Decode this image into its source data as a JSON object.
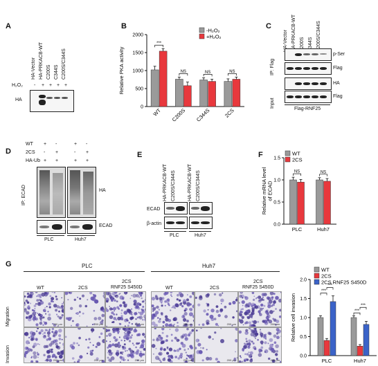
{
  "panels": {
    "a": "A",
    "b": "B",
    "c": "C",
    "d": "D",
    "e": "E",
    "f": "F",
    "g": "G"
  },
  "panelA": {
    "lanes": [
      "HA-Vector",
      "HA-PRKACB-WT",
      "C200S",
      "C344S",
      "C200S/C344S"
    ],
    "h2o2_label": "H₂O₂",
    "h2o2_marks": [
      "-",
      "+",
      "+",
      "+",
      "+"
    ],
    "blot_label": "HA"
  },
  "panelC": {
    "lanes": [
      "HA-Vector",
      "HA-PRKACB-WT",
      "C200S",
      "C344S",
      "C200S/C344S"
    ],
    "ip_label": "IP: Flag",
    "input_label": "Input",
    "bands": [
      "p-Ser",
      "Flag",
      "HA",
      "Flag"
    ],
    "bottom_label": "Flag-RNF25"
  },
  "panelD": {
    "rows": [
      {
        "label": "WT",
        "marks": [
          "+",
          "-",
          "+",
          "-"
        ]
      },
      {
        "label": "2CS",
        "marks": [
          "-",
          "+",
          "-",
          "+"
        ]
      },
      {
        "label": "HA-Ub",
        "marks": [
          "+",
          "+",
          "+",
          "+"
        ]
      }
    ],
    "ip_label": "IP: ECAD",
    "bands": [
      "HA",
      "ECAD"
    ],
    "cells": [
      "PLC",
      "Huh7"
    ]
  },
  "panelE": {
    "lanes": [
      "HA-PRKACB-WT",
      "C200S/C344S",
      "HA-PRKACB-WT",
      "C200S/C344S"
    ],
    "bands": [
      "ECAD",
      "β-actin"
    ],
    "cells": [
      "PLC",
      "Huh7"
    ]
  },
  "panelG": {
    "cell_groups": [
      "PLC",
      "Huh7"
    ],
    "conditions": [
      "WT",
      "2CS",
      "2CS\nRNF25 S450D",
      "WT",
      "2CS",
      "2CS\nRNF25 S450D"
    ],
    "rows": [
      "Migration",
      "Invasion"
    ],
    "scale_bar": "200 μm"
  },
  "chart_data": [
    {
      "id": "B",
      "type": "bar",
      "ylabel": "Relative PKA activity",
      "categories": [
        "WT",
        "C200S",
        "C344S",
        "2CS"
      ],
      "ylim": [
        0,
        2000
      ],
      "yticks": [
        0,
        500,
        1000,
        1500,
        2000
      ],
      "series": [
        {
          "name": "-H₂O₂",
          "color": "#9a9a9a",
          "values": [
            1020,
            760,
            740,
            700
          ],
          "errors": [
            100,
            60,
            60,
            70
          ]
        },
        {
          "name": "+H₂O₂",
          "color": "#e8383d",
          "values": [
            1540,
            580,
            700,
            760
          ],
          "errors": [
            70,
            100,
            60,
            60
          ]
        }
      ],
      "significance": [
        "***",
        "NS",
        "NS",
        "NS"
      ],
      "legend": "top-right"
    },
    {
      "id": "F",
      "type": "bar",
      "ylabel": "Relative mRNA level of ECAD",
      "categories": [
        "PLC",
        "Huh7"
      ],
      "ylim": [
        0,
        1.5
      ],
      "yticks": [
        0.0,
        0.5,
        1.0,
        1.5
      ],
      "series": [
        {
          "name": "WT",
          "color": "#9a9a9a",
          "values": [
            1.0,
            1.0
          ],
          "errors": [
            0.06,
            0.05
          ]
        },
        {
          "name": "2CS",
          "color": "#e8383d",
          "values": [
            0.95,
            0.97
          ],
          "errors": [
            0.06,
            0.06
          ]
        }
      ],
      "significance": [
        "NS",
        "NS"
      ],
      "legend": "top-left"
    },
    {
      "id": "G",
      "type": "bar",
      "ylabel": "Relative cell invasion",
      "categories": [
        "PLC",
        "Huh7"
      ],
      "ylim": [
        0,
        2.0
      ],
      "yticks": [
        0.0,
        0.5,
        1.0,
        1.5,
        2.0
      ],
      "series": [
        {
          "name": "WT",
          "color": "#9a9a9a",
          "values": [
            1.0,
            1.0
          ],
          "errors": [
            0.05,
            0.05
          ]
        },
        {
          "name": "2CS",
          "color": "#e8383d",
          "values": [
            0.4,
            0.25
          ],
          "errors": [
            0.05,
            0.04
          ]
        },
        {
          "name": "2CS RNF25 S450D",
          "color": "#3b63c8",
          "values": [
            1.42,
            0.82
          ],
          "errors": [
            0.15,
            0.08
          ]
        }
      ],
      "significance": [
        "***",
        "***",
        "***",
        "***"
      ],
      "legend": "top-right"
    }
  ]
}
